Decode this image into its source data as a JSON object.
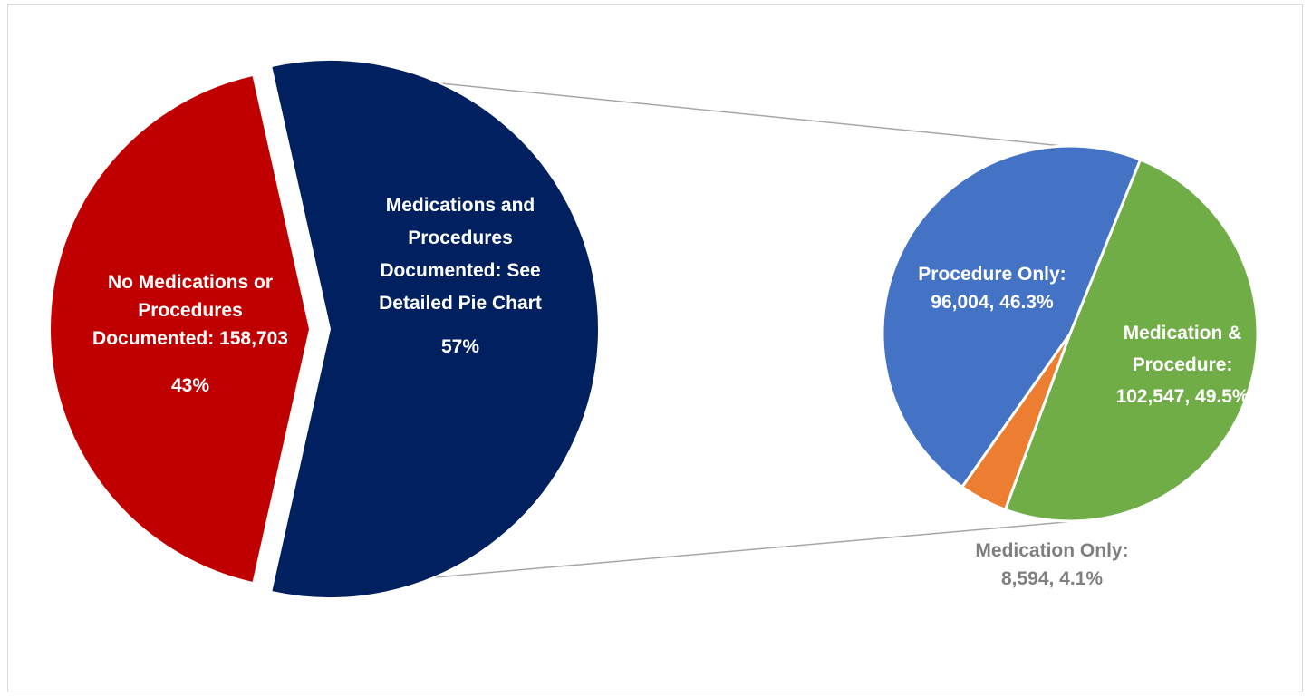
{
  "chart_data": [
    {
      "type": "pie",
      "title": "",
      "slices": [
        {
          "name": "No Medications or Procedures Documented",
          "value": 158703,
          "percent": 43,
          "color": "#c00000",
          "label_lines": [
            "No Medications or",
            "Procedures",
            "Documented: 158,703",
            "43%"
          ]
        },
        {
          "name": "Medications and Procedures Documented: See Detailed Pie Chart",
          "percent": 57,
          "color": "#002060",
          "label_lines": [
            "Medications and",
            "Procedures",
            "Documented: See",
            "Detailed Pie Chart",
            "57%"
          ]
        }
      ]
    },
    {
      "type": "pie",
      "title": "",
      "slices": [
        {
          "name": "Procedure Only",
          "value": 96004,
          "percent": 46.3,
          "color": "#4472c4",
          "label_lines": [
            "Procedure Only:",
            "96,004, 46.3%"
          ]
        },
        {
          "name": "Medication & Procedure",
          "value": 102547,
          "percent": 49.5,
          "color": "#70ad47",
          "label_lines": [
            "Medication &",
            "Procedure:",
            "102,547, 49.5%"
          ]
        },
        {
          "name": "Medication Only",
          "value": 8594,
          "percent": 4.1,
          "color": "#ed7d31",
          "label_lines": [
            "Medication Only:",
            "8,594, 4.1%"
          ]
        }
      ]
    }
  ]
}
